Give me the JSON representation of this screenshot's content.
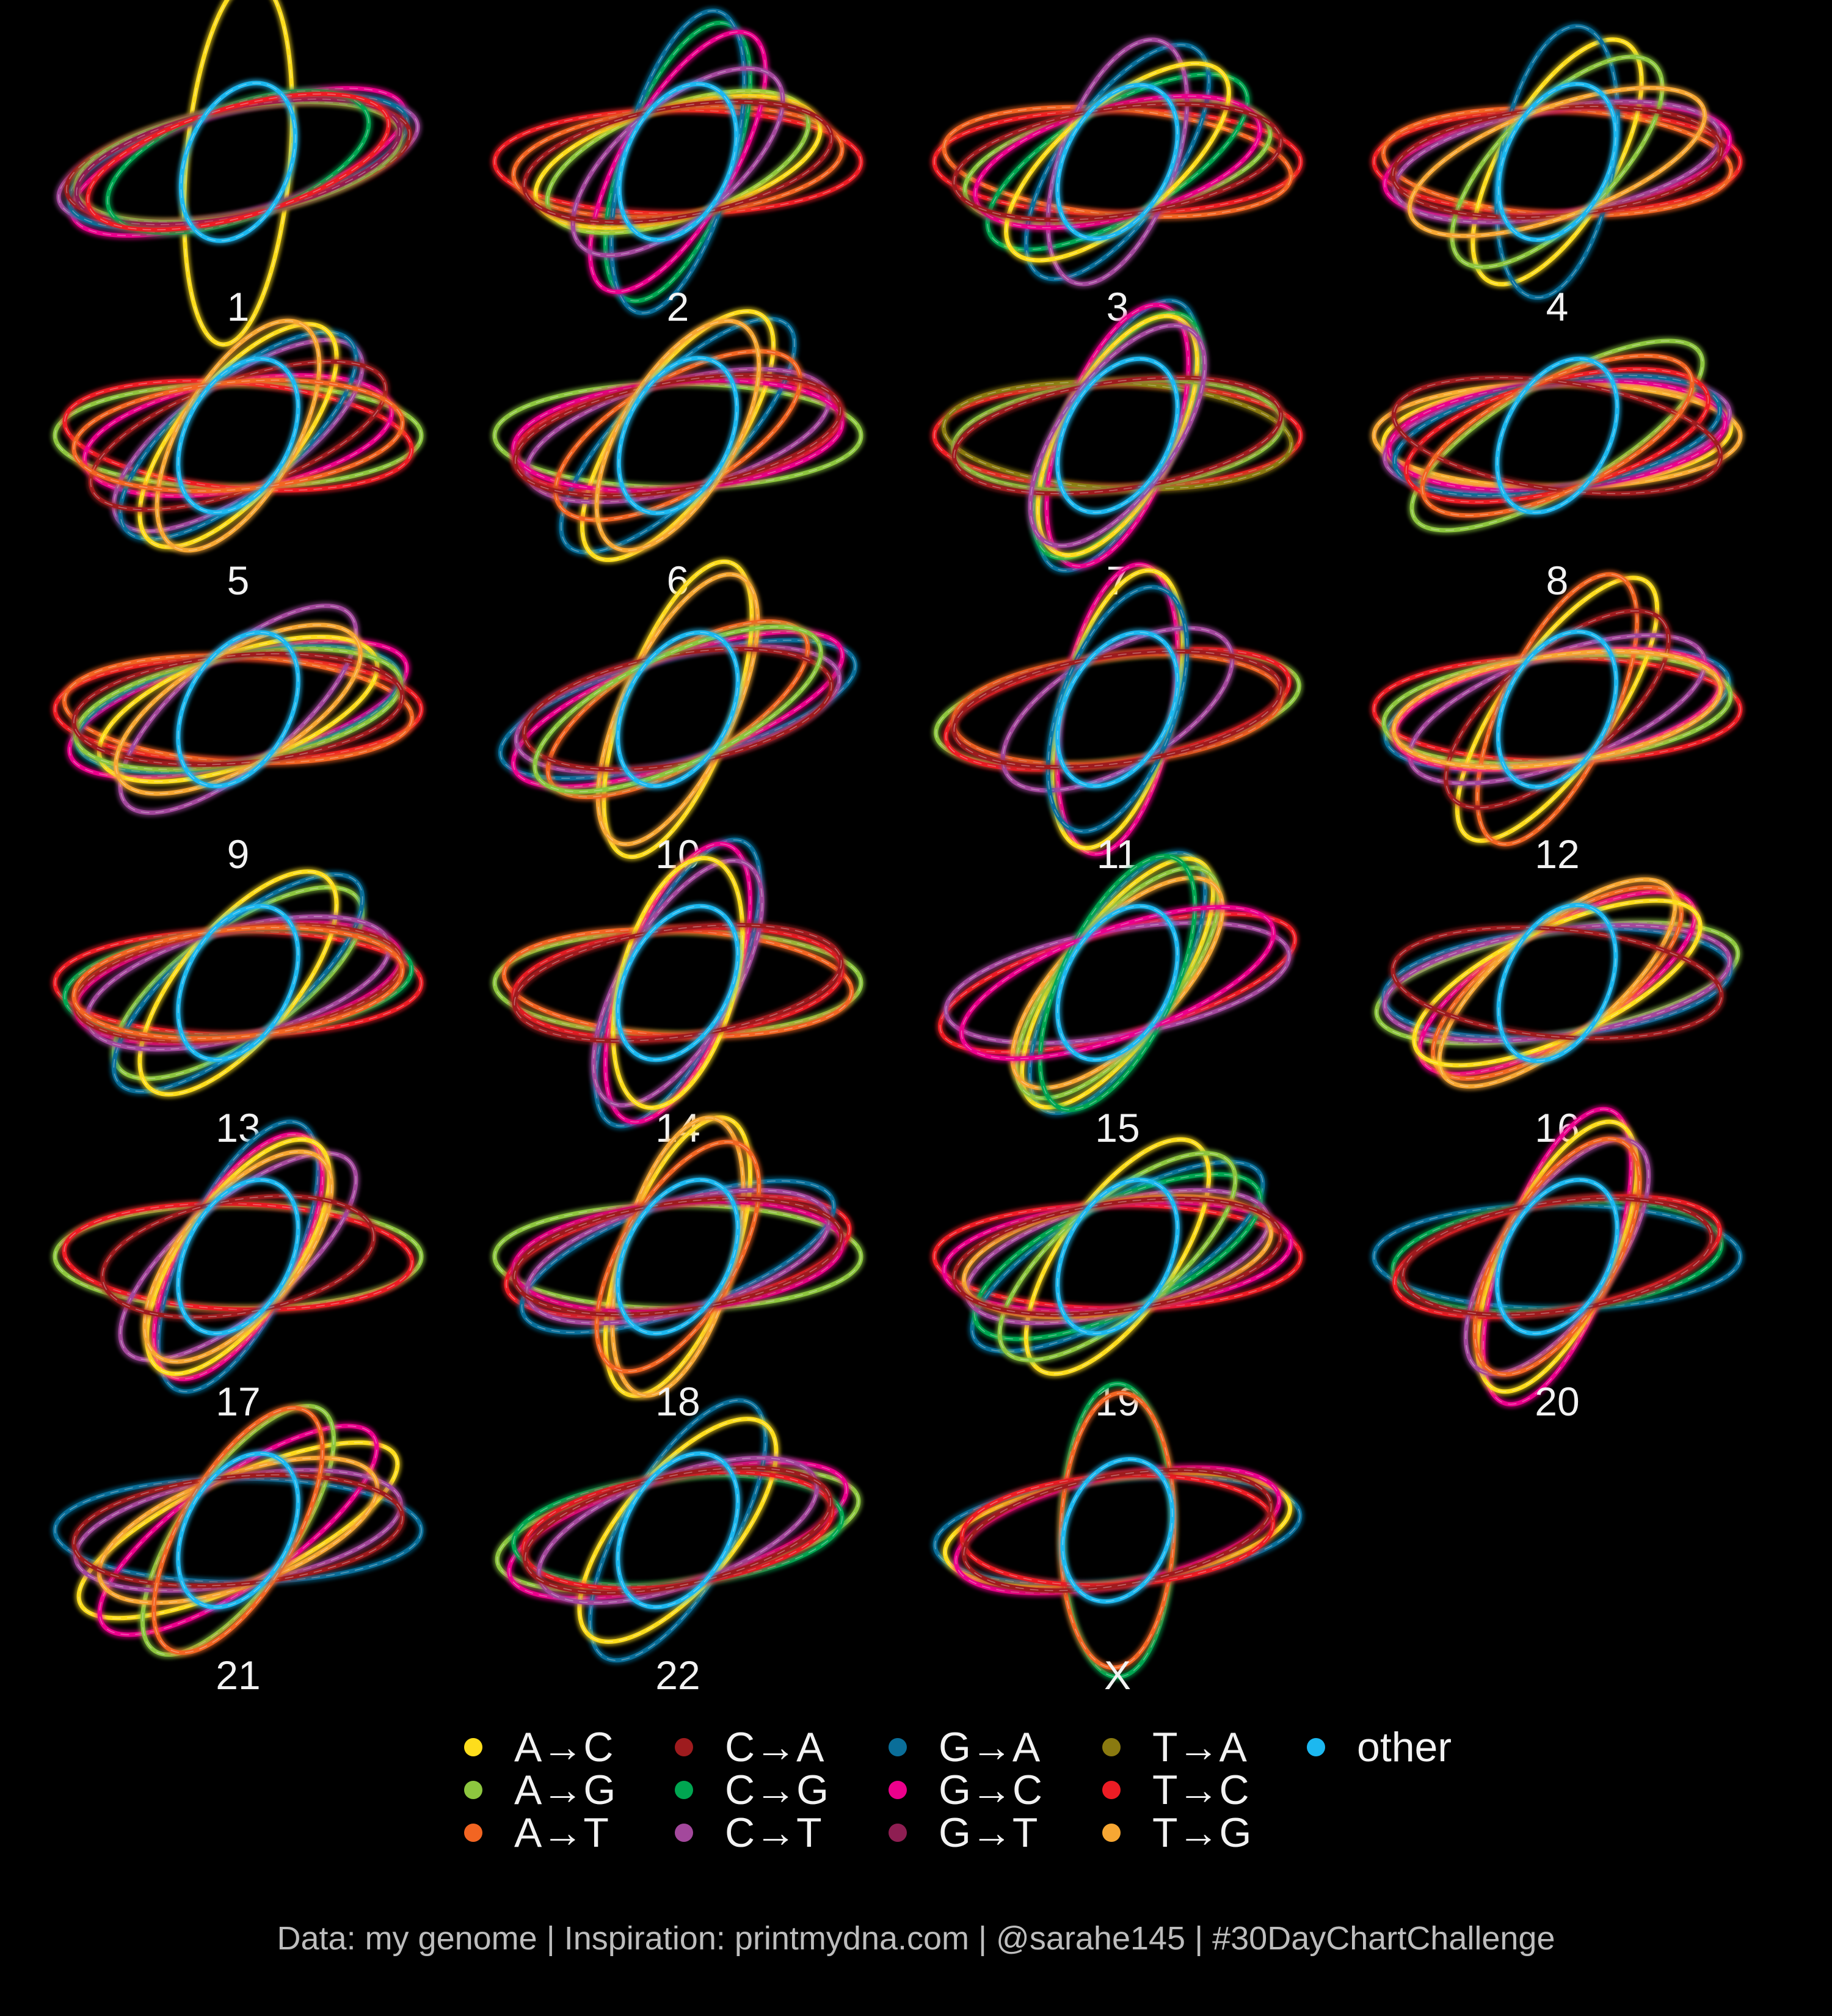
{
  "chart_data": {
    "type": "ellipse-orbits",
    "caption": "Data: my genome | Inspiration: printmydna.com | @sarahe145 | #30DayChartChallenge",
    "legend_columns": 5,
    "categories": [
      {
        "key": "AC",
        "label": "A→C",
        "color": "#FDDD1C"
      },
      {
        "key": "AG",
        "label": "A→G",
        "color": "#8DC63F"
      },
      {
        "key": "AT",
        "label": "A→T",
        "color": "#F26522"
      },
      {
        "key": "CA",
        "label": "C→A",
        "color": "#9E1B1E"
      },
      {
        "key": "CG",
        "label": "C→G",
        "color": "#00A651"
      },
      {
        "key": "CT",
        "label": "C→T",
        "color": "#A3489C"
      },
      {
        "key": "GA",
        "label": "G→A",
        "color": "#0A6E99"
      },
      {
        "key": "GC",
        "label": "G→C",
        "color": "#EC008C"
      },
      {
        "key": "GT",
        "label": "G→T",
        "color": "#8E1E52"
      },
      {
        "key": "TA",
        "label": "T→A",
        "color": "#8A7A10"
      },
      {
        "key": "TC",
        "label": "T→C",
        "color": "#ED1C24"
      },
      {
        "key": "TG",
        "label": "T→G",
        "color": "#F7A733"
      },
      {
        "key": "other",
        "label": "other",
        "color": "#1CB8F0"
      }
    ],
    "panels": [
      {
        "label": "1",
        "orbits": [
          [
            "AC",
            -85,
            1.0
          ],
          [
            "GC",
            -18,
            0.95
          ],
          [
            "CT",
            -12,
            1.0
          ],
          [
            "GA",
            -14,
            0.95
          ],
          [
            "CA",
            -10,
            0.95
          ],
          [
            "AG",
            -10,
            0.9
          ],
          [
            "GT",
            -12,
            0.9
          ],
          [
            "CG",
            -20,
            0.75
          ],
          [
            "TC",
            -16,
            0.85
          ],
          [
            "other",
            -68,
            0.45
          ]
        ]
      },
      {
        "label": "2",
        "orbits": [
          [
            "TC",
            0,
            1.0
          ],
          [
            "AT",
            -5,
            0.9
          ],
          [
            "CG",
            -70,
            0.8
          ],
          [
            "GA",
            -75,
            0.85
          ],
          [
            "GC",
            -60,
            0.8
          ],
          [
            "AG",
            -20,
            0.75
          ],
          [
            "AC",
            -15,
            0.8
          ],
          [
            "CT",
            -40,
            0.7
          ],
          [
            "CA",
            -10,
            0.85
          ],
          [
            "other",
            -65,
            0.45
          ]
        ]
      },
      {
        "label": "3",
        "orbits": [
          [
            "TC",
            0,
            1.0
          ],
          [
            "AT",
            5,
            0.95
          ],
          [
            "AG",
            -12,
            0.85
          ],
          [
            "CG",
            -30,
            0.8
          ],
          [
            "GA",
            -55,
            0.75
          ],
          [
            "CT",
            -70,
            0.7
          ],
          [
            "GC",
            -15,
            0.8
          ],
          [
            "AC",
            -40,
            0.75
          ],
          [
            "CA",
            -8,
            0.9
          ],
          [
            "other",
            -62,
            0.45
          ]
        ]
      },
      {
        "label": "4",
        "orbits": [
          [
            "TC",
            0,
            1.0
          ],
          [
            "AT",
            3,
            0.95
          ],
          [
            "GC",
            -8,
            0.95
          ],
          [
            "AC",
            -60,
            0.75
          ],
          [
            "GA",
            -80,
            0.75
          ],
          [
            "CT",
            -10,
            0.9
          ],
          [
            "AG",
            -45,
            0.75
          ],
          [
            "CA",
            -5,
            0.9
          ],
          [
            "TG",
            -20,
            0.85
          ],
          [
            "other",
            -65,
            0.45
          ]
        ]
      },
      {
        "label": "5",
        "orbits": [
          [
            "AG",
            0,
            1.0
          ],
          [
            "TC",
            5,
            0.95
          ],
          [
            "GC",
            -10,
            0.85
          ],
          [
            "CT",
            -35,
            0.8
          ],
          [
            "GA",
            -40,
            0.8
          ],
          [
            "AC",
            -50,
            0.75
          ],
          [
            "CA",
            -20,
            0.85
          ],
          [
            "TG",
            -60,
            0.7
          ],
          [
            "AT",
            -5,
            0.9
          ],
          [
            "other",
            -62,
            0.45
          ]
        ]
      },
      {
        "label": "6",
        "orbits": [
          [
            "AG",
            0,
            1.0
          ],
          [
            "TC",
            -8,
            0.9
          ],
          [
            "GA",
            -45,
            0.85
          ],
          [
            "AC",
            -55,
            0.8
          ],
          [
            "CT",
            -15,
            0.85
          ],
          [
            "GC",
            -5,
            0.9
          ],
          [
            "AT",
            -30,
            0.75
          ],
          [
            "CA",
            -10,
            0.9
          ],
          [
            "TG",
            -60,
            0.7
          ],
          [
            "other",
            -64,
            0.45
          ]
        ]
      },
      {
        "label": "7",
        "orbits": [
          [
            "TC",
            0,
            1.0
          ],
          [
            "TA",
            3,
            0.95
          ],
          [
            "GA",
            -65,
            0.8
          ],
          [
            "GC",
            -70,
            0.75
          ],
          [
            "CG",
            -60,
            0.75
          ],
          [
            "AC",
            -62,
            0.72
          ],
          [
            "AG",
            -5,
            0.9
          ],
          [
            "CA",
            -8,
            0.9
          ],
          [
            "CT",
            -55,
            0.7
          ],
          [
            "other",
            -62,
            0.45
          ]
        ]
      },
      {
        "label": "8",
        "orbits": [
          [
            "TG",
            0,
            1.0
          ],
          [
            "AC",
            -3,
            0.95
          ],
          [
            "CT",
            -8,
            0.95
          ],
          [
            "GC",
            -5,
            0.92
          ],
          [
            "AG",
            -30,
            0.9
          ],
          [
            "GA",
            -10,
            0.9
          ],
          [
            "TC",
            -15,
            0.85
          ],
          [
            "CA",
            8,
            0.9
          ],
          [
            "AT",
            -25,
            0.8
          ],
          [
            "other",
            -62,
            0.45
          ]
        ]
      },
      {
        "label": "9",
        "orbits": [
          [
            "TC",
            0,
            1.0
          ],
          [
            "AT",
            3,
            0.95
          ],
          [
            "GC",
            -15,
            0.95
          ],
          [
            "CT",
            -40,
            0.8
          ],
          [
            "GA",
            -12,
            0.9
          ],
          [
            "AC",
            -20,
            0.8
          ],
          [
            "AG",
            -10,
            0.9
          ],
          [
            "CA",
            -5,
            0.9
          ],
          [
            "TG",
            -30,
            0.75
          ],
          [
            "other",
            -62,
            0.45
          ]
        ]
      },
      {
        "label": "10",
        "orbits": [
          [
            "GA",
            -15,
            1.0
          ],
          [
            "GC",
            -20,
            0.95
          ],
          [
            "CT",
            -12,
            0.9
          ],
          [
            "AC",
            -70,
            0.85
          ],
          [
            "TG",
            -65,
            0.8
          ],
          [
            "AT",
            -30,
            0.8
          ],
          [
            "CA",
            -10,
            0.85
          ],
          [
            "AG",
            -25,
            0.85
          ],
          [
            "other",
            -62,
            0.45
          ]
        ]
      },
      {
        "label": "11",
        "orbits": [
          [
            "AG",
            -8,
            1.0
          ],
          [
            "TC",
            -10,
            0.95
          ],
          [
            "AT",
            -5,
            0.9
          ],
          [
            "GC",
            -80,
            0.8
          ],
          [
            "AC",
            -75,
            0.78
          ],
          [
            "CT",
            -30,
            0.7
          ],
          [
            "GA",
            -70,
            0.7
          ],
          [
            "CA",
            -8,
            0.9
          ],
          [
            "other",
            -62,
            0.45
          ]
        ]
      },
      {
        "label": "12",
        "orbits": [
          [
            "TC",
            0,
            1.0
          ],
          [
            "GA",
            -10,
            0.95
          ],
          [
            "AG",
            -5,
            0.95
          ],
          [
            "AC",
            -55,
            0.85
          ],
          [
            "AT",
            -65,
            0.8
          ],
          [
            "CT",
            -20,
            0.85
          ],
          [
            "GC",
            -10,
            0.9
          ],
          [
            "CA",
            -40,
            0.75
          ],
          [
            "TG",
            -8,
            0.9
          ],
          [
            "other",
            -64,
            0.45
          ]
        ]
      },
      {
        "label": "13",
        "orbits": [
          [
            "TC",
            0,
            1.0
          ],
          [
            "CG",
            -5,
            0.95
          ],
          [
            "GC",
            -10,
            0.9
          ],
          [
            "AG",
            -35,
            0.8
          ],
          [
            "GA",
            -40,
            0.85
          ],
          [
            "AC",
            -50,
            0.75
          ],
          [
            "CT",
            -15,
            0.85
          ],
          [
            "CA",
            -8,
            0.9
          ],
          [
            "AT",
            -5,
            0.9
          ],
          [
            "other",
            -62,
            0.45
          ]
        ]
      },
      {
        "label": "14",
        "orbits": [
          [
            "AG",
            0,
            1.0
          ],
          [
            "AT",
            3,
            0.95
          ],
          [
            "TC",
            -5,
            0.9
          ],
          [
            "GA",
            -65,
            0.85
          ],
          [
            "GC",
            -70,
            0.8
          ],
          [
            "CT",
            -60,
            0.75
          ],
          [
            "AC",
            -75,
            0.7
          ],
          [
            "CA",
            -8,
            0.9
          ],
          [
            "other",
            -62,
            0.45
          ]
        ]
      },
      {
        "label": "15",
        "orbits": [
          [
            "TC",
            -15,
            1.0
          ],
          [
            "CT",
            -10,
            0.95
          ],
          [
            "GA",
            -60,
            0.8
          ],
          [
            "AC",
            -55,
            0.8
          ],
          [
            "AG",
            -50,
            0.78
          ],
          [
            "TG",
            -45,
            0.75
          ],
          [
            "CG",
            -65,
            0.75
          ],
          [
            "GC",
            -20,
            0.9
          ],
          [
            "other",
            -62,
            0.45
          ]
        ]
      },
      {
        "label": "16",
        "orbits": [
          [
            "AG",
            -10,
            1.0
          ],
          [
            "GA",
            -5,
            0.95
          ],
          [
            "CT",
            -8,
            0.95
          ],
          [
            "GC",
            -30,
            0.85
          ],
          [
            "AT",
            -35,
            0.8
          ],
          [
            "TG",
            -40,
            0.8
          ],
          [
            "AC",
            -25,
            0.85
          ],
          [
            "CA",
            5,
            0.9
          ],
          [
            "other",
            -65,
            0.45
          ]
        ]
      },
      {
        "label": "17",
        "orbits": [
          [
            "AG",
            0,
            1.0
          ],
          [
            "TC",
            2,
            0.95
          ],
          [
            "CT",
            -40,
            0.8
          ],
          [
            "GA",
            -65,
            0.8
          ],
          [
            "GC",
            -60,
            0.75
          ],
          [
            "AC",
            -55,
            0.75
          ],
          [
            "TG",
            -50,
            0.7
          ],
          [
            "CA",
            -10,
            0.75
          ],
          [
            "other",
            -62,
            0.45
          ]
        ]
      },
      {
        "label": "18",
        "orbits": [
          [
            "AG",
            0,
            1.0
          ],
          [
            "TC",
            -10,
            0.95
          ],
          [
            "GA",
            -20,
            0.9
          ],
          [
            "AC",
            -70,
            0.8
          ],
          [
            "TG",
            -75,
            0.78
          ],
          [
            "GC",
            -5,
            0.9
          ],
          [
            "CT",
            -15,
            0.85
          ],
          [
            "AT",
            -60,
            0.7
          ],
          [
            "CA",
            -8,
            0.9
          ],
          [
            "other",
            -62,
            0.45
          ]
        ]
      },
      {
        "label": "19",
        "orbits": [
          [
            "TC",
            0,
            1.0
          ],
          [
            "GC",
            -5,
            0.95
          ],
          [
            "GA",
            -30,
            0.9
          ],
          [
            "CG",
            -25,
            0.85
          ],
          [
            "AC",
            -55,
            0.75
          ],
          [
            "CT",
            -15,
            0.85
          ],
          [
            "AG",
            -40,
            0.8
          ],
          [
            "TG",
            -10,
            0.85
          ],
          [
            "CA",
            -8,
            0.9
          ],
          [
            "other",
            -62,
            0.45
          ]
        ]
      },
      {
        "label": "20",
        "orbits": [
          [
            "GA",
            0,
            1.0
          ],
          [
            "CG",
            -5,
            0.9
          ],
          [
            "GC",
            -70,
            0.85
          ],
          [
            "AC",
            -65,
            0.8
          ],
          [
            "TC",
            -10,
            0.9
          ],
          [
            "CT",
            -55,
            0.75
          ],
          [
            "AT",
            -60,
            0.72
          ],
          [
            "CA",
            -8,
            0.85
          ],
          [
            "other",
            -62,
            0.45
          ]
        ]
      },
      {
        "label": "21",
        "orbits": [
          [
            "GA",
            0,
            1.0
          ],
          [
            "AC",
            -25,
            0.95
          ],
          [
            "GC",
            -35,
            0.9
          ],
          [
            "AG",
            -55,
            0.8
          ],
          [
            "CT",
            -10,
            0.9
          ],
          [
            "TG",
            -20,
            0.8
          ],
          [
            "CA",
            -5,
            0.9
          ],
          [
            "AT",
            -60,
            0.75
          ],
          [
            "other",
            -62,
            0.45
          ]
        ]
      },
      {
        "label": "22",
        "orbits": [
          [
            "AG",
            -10,
            1.0
          ],
          [
            "GC",
            -15,
            0.95
          ],
          [
            "CG",
            -5,
            0.9
          ],
          [
            "GA",
            -60,
            0.8
          ],
          [
            "AC",
            -50,
            0.75
          ],
          [
            "TC",
            -8,
            0.85
          ],
          [
            "CT",
            -20,
            0.8
          ],
          [
            "CA",
            -12,
            0.85
          ],
          [
            "other",
            -62,
            0.45
          ]
        ]
      },
      {
        "label": "X",
        "orbits": [
          [
            "GA",
            -5,
            1.0
          ],
          [
            "AC",
            -8,
            0.95
          ],
          [
            "GC",
            -12,
            0.9
          ],
          [
            "CG",
            -90,
            0.8
          ],
          [
            "AT",
            -88,
            0.75
          ],
          [
            "TC",
            -3,
            0.85
          ],
          [
            "CA",
            -10,
            0.85
          ],
          [
            "other",
            -70,
            0.4
          ]
        ]
      }
    ]
  }
}
